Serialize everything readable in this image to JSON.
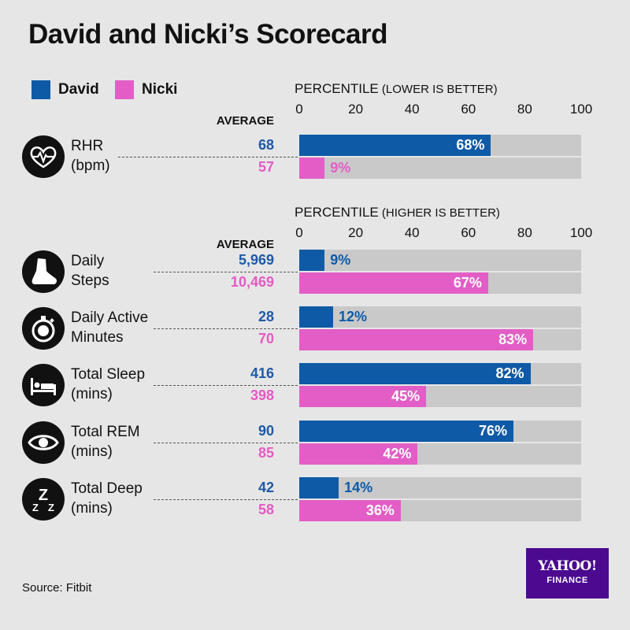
{
  "title": "David and Nicki’s Scorecard",
  "legend": {
    "david": "David",
    "nicki": "Nicki"
  },
  "colors": {
    "david": "#0e5aa7",
    "nicki": "#e25ec6",
    "track": "#c9c9c9",
    "background": "#e6e6e6",
    "yahoo_bg": "#4b0a8f"
  },
  "sections": [
    {
      "header_main": "PERCENTILE",
      "header_sub": " (LOWER IS BETTER)",
      "avg_header": "AVERAGE",
      "ticks": [
        "0",
        "20",
        "40",
        "60",
        "80",
        "100"
      ]
    },
    {
      "header_main": "PERCENTILE",
      "header_sub": " (HIGHER IS BETTER)",
      "avg_header": "AVERAGE",
      "ticks": [
        "0",
        "20",
        "40",
        "60",
        "80",
        "100"
      ]
    }
  ],
  "metrics": [
    {
      "icon": "heart-pulse-icon",
      "line1": "RHR",
      "line2": "(bpm)",
      "david_avg": "68",
      "nicki_avg": "57"
    },
    {
      "icon": "shoe-icon",
      "line1": "Daily",
      "line2": "Steps",
      "david_avg": "5,969",
      "nicki_avg": "10,469"
    },
    {
      "icon": "stopwatch-icon",
      "line1": "Daily Active",
      "line2": "Minutes",
      "david_avg": "28",
      "nicki_avg": "70"
    },
    {
      "icon": "bed-icon",
      "line1": "Total Sleep",
      "line2": "(mins)",
      "david_avg": "416",
      "nicki_avg": "398"
    },
    {
      "icon": "eye-icon",
      "line1": "Total REM",
      "line2": "(mins)",
      "david_avg": "90",
      "nicki_avg": "85"
    },
    {
      "icon": "zzz-icon",
      "line1": "Total Deep",
      "line2": "(mins)",
      "david_avg": "42",
      "nicki_avg": "58"
    }
  ],
  "chart_data": {
    "type": "bar",
    "orientation": "horizontal",
    "title": "David and Nicki’s Scorecard",
    "xlabel": "PERCENTILE",
    "xlim": [
      0,
      100
    ],
    "xticks": [
      0,
      20,
      40,
      60,
      80,
      100
    ],
    "categories": [
      "RHR (bpm)",
      "Daily Steps",
      "Daily Active Minutes",
      "Total Sleep (mins)",
      "Total REM (mins)",
      "Total Deep (mins)"
    ],
    "series": [
      {
        "name": "David",
        "values": [
          68,
          9,
          12,
          82,
          76,
          14
        ],
        "labels": [
          "68%",
          "9%",
          "12%",
          "82%",
          "76%",
          "14%"
        ]
      },
      {
        "name": "Nicki",
        "values": [
          9,
          67,
          83,
          45,
          42,
          36
        ],
        "labels": [
          "9%",
          "67%",
          "83%",
          "45%",
          "42%",
          "36%"
        ]
      }
    ],
    "notes": [
      "RHR: PERCENTILE (LOWER IS BETTER)",
      "Other metrics: PERCENTILE (HIGHER IS BETTER)"
    ]
  },
  "source": "Source: Fitbit",
  "logo": {
    "line1": "YAHOO!",
    "line2": "FINANCE"
  }
}
